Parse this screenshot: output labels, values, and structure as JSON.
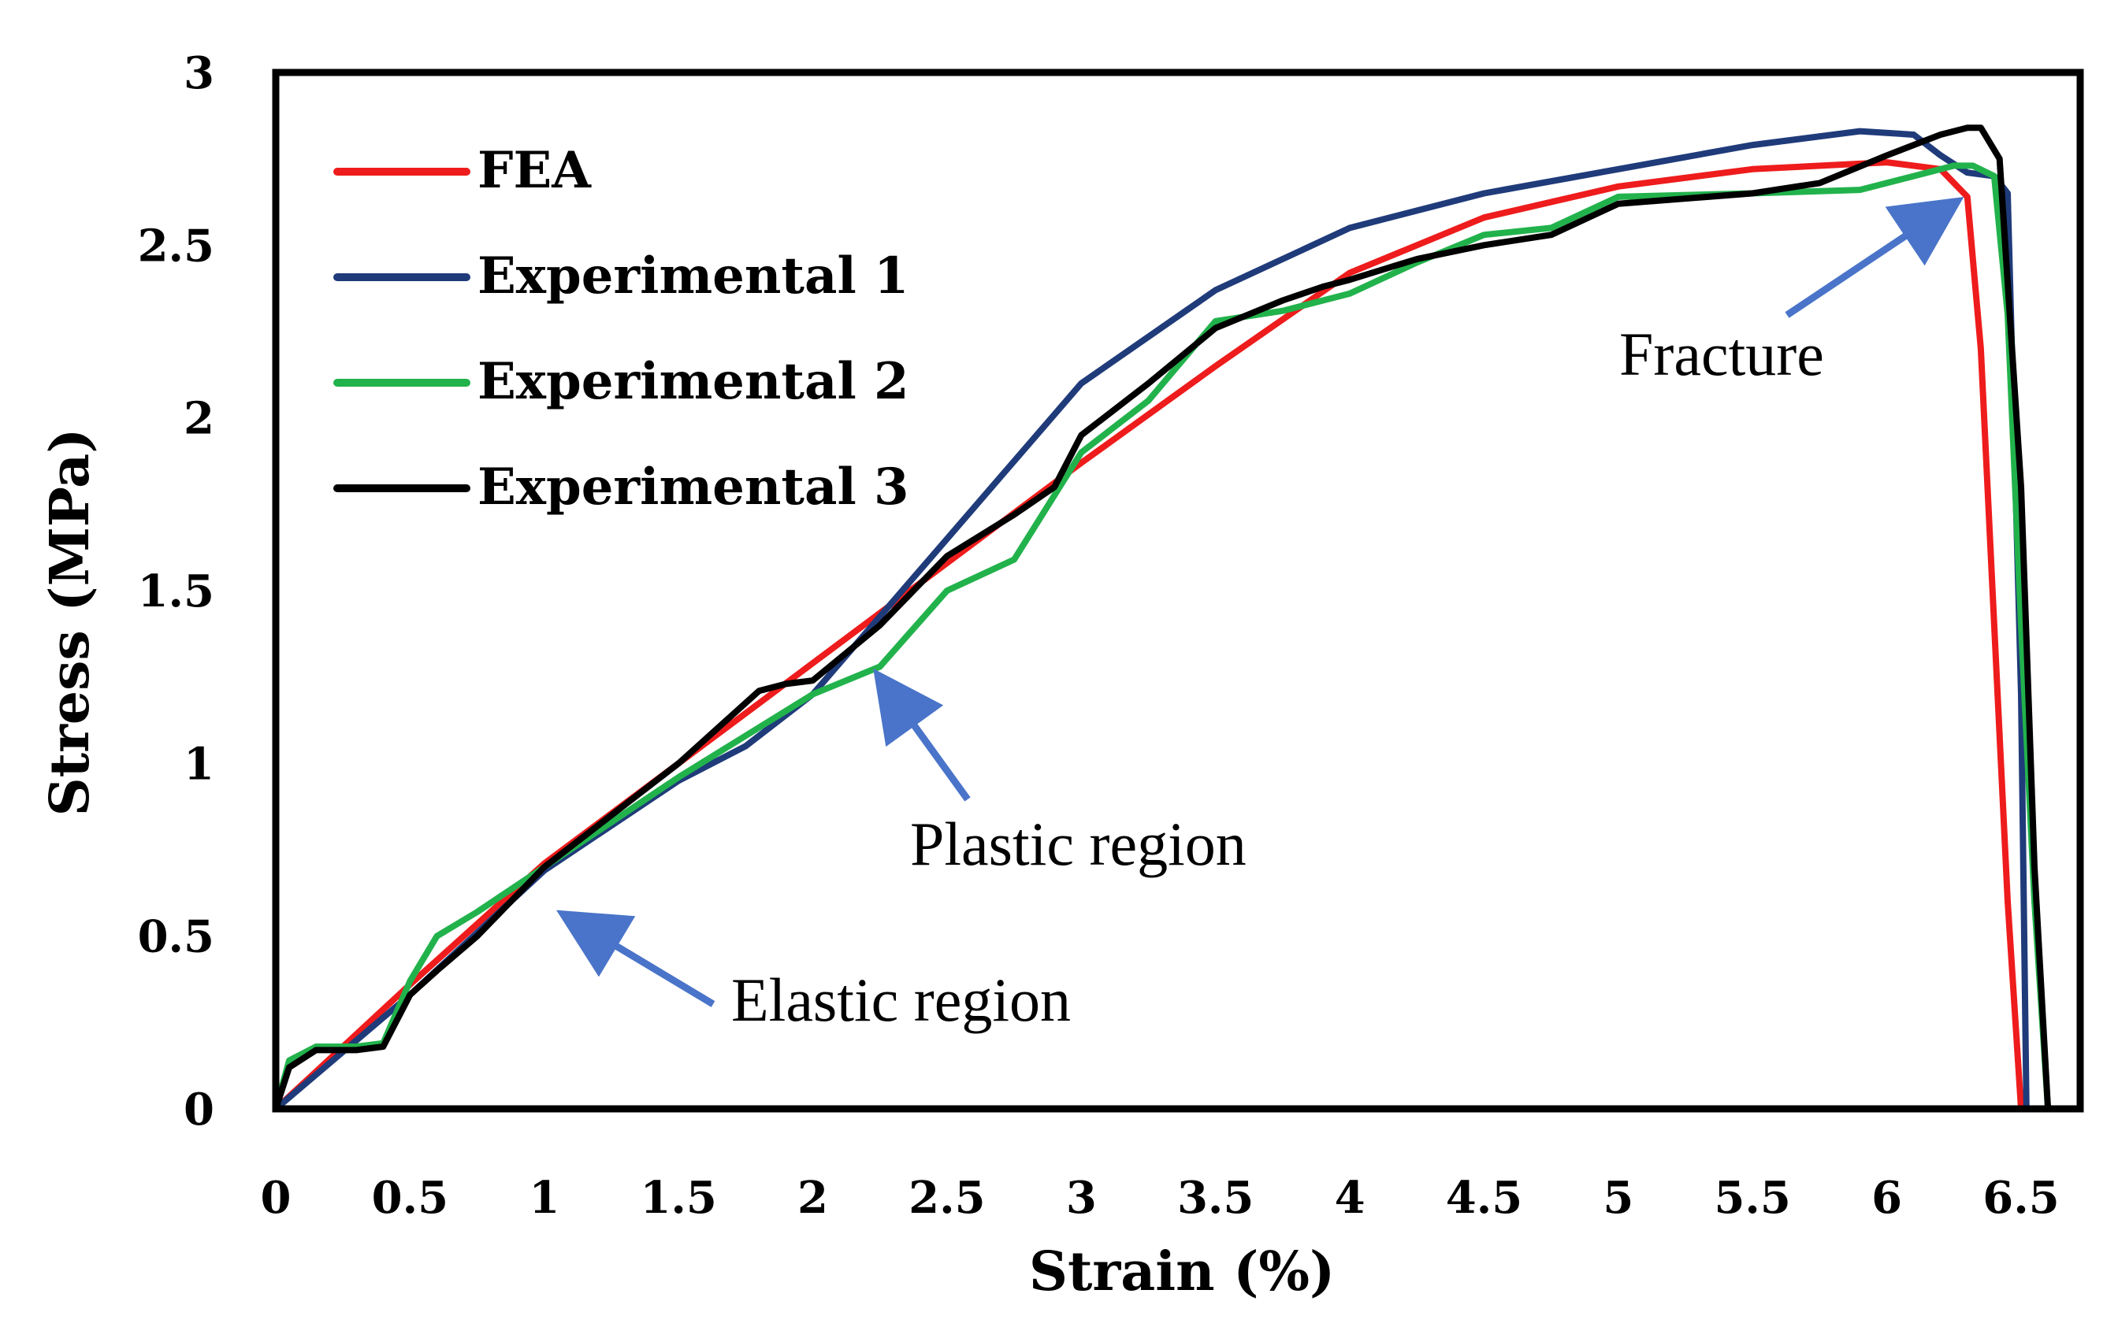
{
  "chart_data": {
    "type": "line",
    "title": "",
    "xlabel": "Strain (%)",
    "ylabel": "Stress (MPa)",
    "xlim": [
      0,
      6.5
    ],
    "ylim": [
      0,
      3
    ],
    "xticks": [
      "0",
      "0.5",
      "1",
      "1.5",
      "2",
      "2.5",
      "3",
      "3.5",
      "4",
      "4.5",
      "5",
      "5.5",
      "6",
      "6.5"
    ],
    "yticks": [
      "0",
      "0.5",
      "1",
      "1.5",
      "2",
      "2.5",
      "3"
    ],
    "grid": false,
    "legend_position": "top-left",
    "series": [
      {
        "name": "FEA",
        "color": "#ee1c1c",
        "x": [
          0,
          0.5,
          1,
          1.5,
          2,
          2.5,
          3,
          3.5,
          4,
          4.5,
          5,
          5.5,
          6,
          6.2,
          6.3,
          6.35,
          6.4,
          6.45,
          6.5
        ],
        "y": [
          0,
          0.36,
          0.71,
          1.0,
          1.29,
          1.58,
          1.87,
          2.15,
          2.42,
          2.58,
          2.67,
          2.72,
          2.74,
          2.72,
          2.64,
          2.2,
          1.4,
          0.6,
          0
        ]
      },
      {
        "name": "Experimental 1",
        "color": "#1f3b7a",
        "x": [
          0,
          0.5,
          1,
          1.5,
          1.75,
          2,
          2.5,
          3,
          3.5,
          4,
          4.5,
          5,
          5.5,
          5.9,
          6.1,
          6.2,
          6.3,
          6.4,
          6.45,
          6.5,
          6.52
        ],
        "y": [
          0,
          0.33,
          0.69,
          0.95,
          1.05,
          1.2,
          1.65,
          2.1,
          2.37,
          2.55,
          2.65,
          2.72,
          2.79,
          2.83,
          2.82,
          2.76,
          2.71,
          2.7,
          2.65,
          1.2,
          0
        ]
      },
      {
        "name": "Experimental 2",
        "color": "#22b24c",
        "x": [
          0,
          0.05,
          0.15,
          0.3,
          0.4,
          0.5,
          0.6,
          0.75,
          1,
          1.5,
          2,
          2.25,
          2.5,
          2.75,
          3,
          3.25,
          3.5,
          3.75,
          4,
          4.25,
          4.5,
          4.75,
          5,
          5.5,
          5.9,
          6.1,
          6.25,
          6.32,
          6.4,
          6.45,
          6.5,
          6.55,
          6.6
        ],
        "y": [
          0,
          0.14,
          0.18,
          0.18,
          0.19,
          0.37,
          0.5,
          0.57,
          0.7,
          0.96,
          1.2,
          1.28,
          1.5,
          1.59,
          1.9,
          2.05,
          2.28,
          2.31,
          2.36,
          2.45,
          2.53,
          2.55,
          2.64,
          2.65,
          2.66,
          2.7,
          2.73,
          2.73,
          2.7,
          2.3,
          1.4,
          0.6,
          0
        ]
      },
      {
        "name": "Experimental 3",
        "color": "#000000",
        "x": [
          0,
          0.05,
          0.15,
          0.3,
          0.4,
          0.5,
          0.6,
          0.75,
          1,
          1.5,
          1.8,
          1.9,
          2,
          2.25,
          2.5,
          2.75,
          2.9,
          3,
          3.25,
          3.5,
          3.75,
          3.9,
          4,
          4.25,
          4.5,
          4.75,
          5,
          5.5,
          5.75,
          6,
          6.2,
          6.3,
          6.35,
          6.42,
          6.5,
          6.55,
          6.6
        ],
        "y": [
          0,
          0.12,
          0.17,
          0.17,
          0.18,
          0.33,
          0.4,
          0.5,
          0.7,
          1.0,
          1.21,
          1.23,
          1.24,
          1.4,
          1.6,
          1.72,
          1.8,
          1.95,
          2.1,
          2.26,
          2.34,
          2.38,
          2.4,
          2.46,
          2.5,
          2.53,
          2.62,
          2.65,
          2.68,
          2.76,
          2.82,
          2.84,
          2.84,
          2.75,
          1.8,
          0.7,
          0
        ]
      }
    ],
    "annotations": [
      {
        "text": "Elastic region"
      },
      {
        "text": "Plastic region"
      },
      {
        "text": "Fracture"
      }
    ]
  }
}
